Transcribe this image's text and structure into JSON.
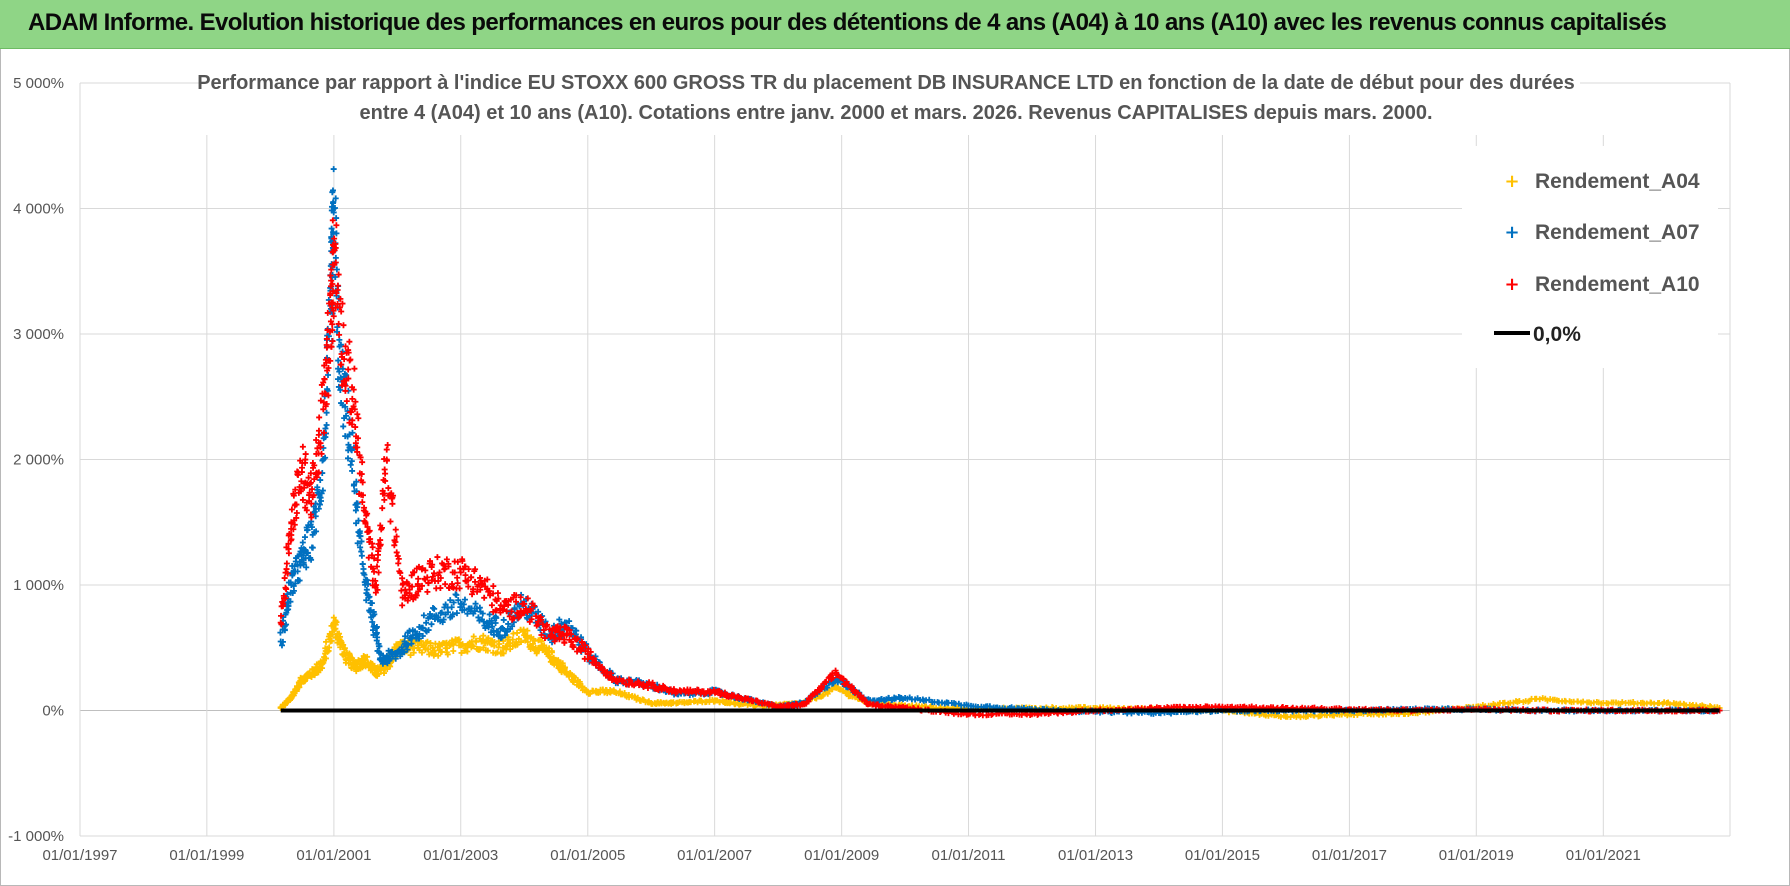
{
  "banner": {
    "title": "ADAM Informe. Evolution historique des performances en euros pour des détentions de 4 ans (A04) à 10 ans (A10) avec les revenus connus capitalisés"
  },
  "colors": {
    "banner_bg": "#8fd586",
    "A04": "#ffc000",
    "A07": "#0070c0",
    "A10": "#ff0000",
    "zero": "#000000",
    "grid": "#d9d9d9"
  },
  "chart_data": {
    "type": "scatter",
    "title_lines": [
      "Performance par rapport à l'indice EU STOXX 600 GROSS TR  du placement DB INSURANCE LTD en fonction de la date de début pour des durées",
      "entre 4 (A04) et 10 ans (A10).  Cotations entre janv. 2000 et mars. 2026.  Revenus CAPITALISES depuis mars. 2000."
    ],
    "xlabel": "",
    "ylabel": "",
    "x_range": [
      "01/01/1997",
      "31/12/2022"
    ],
    "ylim": [
      -1000,
      5000
    ],
    "y_unit": "%",
    "y_ticks": [
      -1000,
      0,
      1000,
      2000,
      3000,
      4000,
      5000
    ],
    "y_tick_labels": [
      "-1 000%",
      "0%",
      "1 000%",
      "2 000%",
      "3 000%",
      "4 000%",
      "5 000%"
    ],
    "x_tick_labels": [
      "01/01/1997",
      "01/01/1999",
      "01/01/2001",
      "01/01/2003",
      "01/01/2005",
      "01/01/2007",
      "01/01/2009",
      "01/01/2011",
      "01/01/2013",
      "01/01/2015",
      "01/01/2017",
      "01/01/2019",
      "01/01/2021"
    ],
    "grid": true,
    "legend_position": "top-right",
    "legend": [
      "Rendement_A04",
      "Rendement_A07",
      "Rendement_A10",
      "0,0%"
    ],
    "series": [
      {
        "name": "Rendement_A04",
        "marker": "plus",
        "points": [
          [
            "2000-03-01",
            20
          ],
          [
            "2000-05-01",
            100
          ],
          [
            "2000-07-01",
            250
          ],
          [
            "2000-09-01",
            300
          ],
          [
            "2000-11-01",
            380
          ],
          [
            "2001-01-01",
            700
          ],
          [
            "2001-03-01",
            450
          ],
          [
            "2001-05-01",
            350
          ],
          [
            "2001-07-01",
            400
          ],
          [
            "2001-09-01",
            300
          ],
          [
            "2001-11-01",
            350
          ],
          [
            "2002-01-01",
            500
          ],
          [
            "2002-05-01",
            500
          ],
          [
            "2002-09-01",
            480
          ],
          [
            "2003-01-01",
            520
          ],
          [
            "2003-05-01",
            550
          ],
          [
            "2003-09-01",
            500
          ],
          [
            "2004-01-01",
            600
          ],
          [
            "2004-04-01",
            500
          ],
          [
            "2004-07-01",
            400
          ],
          [
            "2004-09-01",
            300
          ],
          [
            "2005-01-01",
            150
          ],
          [
            "2005-06-01",
            150
          ],
          [
            "2006-01-01",
            60
          ],
          [
            "2006-06-01",
            60
          ],
          [
            "2007-01-01",
            80
          ],
          [
            "2007-06-01",
            50
          ],
          [
            "2008-01-01",
            40
          ],
          [
            "2008-06-01",
            60
          ],
          [
            "2008-12-01",
            180
          ],
          [
            "2009-06-01",
            60
          ],
          [
            "2010-01-01",
            40
          ],
          [
            "2011-01-01",
            10
          ],
          [
            "2012-01-01",
            20
          ],
          [
            "2013-01-01",
            20
          ],
          [
            "2014-01-01",
            10
          ],
          [
            "2015-01-01",
            0
          ],
          [
            "2016-01-01",
            -50
          ],
          [
            "2017-01-01",
            -30
          ],
          [
            "2018-01-01",
            -20
          ],
          [
            "2019-01-01",
            30
          ],
          [
            "2020-01-01",
            90
          ],
          [
            "2021-01-01",
            60
          ],
          [
            "2022-01-01",
            60
          ],
          [
            "2022-11-01",
            20
          ]
        ]
      },
      {
        "name": "Rendement_A07",
        "marker": "plus",
        "points": [
          [
            "2000-03-01",
            550
          ],
          [
            "2000-05-01",
            1000
          ],
          [
            "2000-07-01",
            1200
          ],
          [
            "2000-09-01",
            1400
          ],
          [
            "2000-11-01",
            2000
          ],
          [
            "2000-12-15",
            3200
          ],
          [
            "2001-01-01",
            4000
          ],
          [
            "2001-02-01",
            2700
          ],
          [
            "2001-04-01",
            2200
          ],
          [
            "2001-06-01",
            1300
          ],
          [
            "2001-08-01",
            800
          ],
          [
            "2001-10-01",
            400
          ],
          [
            "2002-01-01",
            450
          ],
          [
            "2002-04-01",
            600
          ],
          [
            "2002-08-01",
            750
          ],
          [
            "2003-01-01",
            850
          ],
          [
            "2003-06-01",
            700
          ],
          [
            "2003-09-01",
            650
          ],
          [
            "2004-01-01",
            850
          ],
          [
            "2004-06-01",
            600
          ],
          [
            "2004-09-01",
            700
          ],
          [
            "2005-01-01",
            450
          ],
          [
            "2005-06-01",
            250
          ],
          [
            "2006-01-01",
            200
          ],
          [
            "2006-06-01",
            130
          ],
          [
            "2007-01-01",
            150
          ],
          [
            "2007-06-01",
            100
          ],
          [
            "2008-01-01",
            30
          ],
          [
            "2008-06-01",
            60
          ],
          [
            "2008-12-01",
            260
          ],
          [
            "2009-06-01",
            80
          ],
          [
            "2010-01-01",
            100
          ],
          [
            "2011-01-01",
            40
          ],
          [
            "2012-01-01",
            10
          ],
          [
            "2013-01-01",
            -10
          ],
          [
            "2014-01-01",
            -20
          ],
          [
            "2015-01-01",
            0
          ],
          [
            "2016-01-01",
            0
          ],
          [
            "2017-01-01",
            0
          ],
          [
            "2018-01-01",
            10
          ],
          [
            "2019-01-01",
            10
          ],
          [
            "2020-01-01",
            0
          ],
          [
            "2021-01-01",
            0
          ],
          [
            "2022-01-01",
            0
          ],
          [
            "2022-11-01",
            0
          ]
        ]
      },
      {
        "name": "Rendement_A10",
        "marker": "plus",
        "points": [
          [
            "2000-03-01",
            700
          ],
          [
            "2000-05-01",
            1500
          ],
          [
            "2000-07-01",
            1900
          ],
          [
            "2000-09-01",
            1700
          ],
          [
            "2000-11-01",
            2400
          ],
          [
            "2000-12-15",
            3100
          ],
          [
            "2001-01-01",
            3700
          ],
          [
            "2001-03-01",
            2800
          ],
          [
            "2001-05-01",
            2400
          ],
          [
            "2001-07-01",
            1500
          ],
          [
            "2001-09-01",
            1000
          ],
          [
            "2001-11-01",
            2000
          ],
          [
            "2002-02-01",
            900
          ],
          [
            "2002-05-01",
            1050
          ],
          [
            "2002-09-01",
            1100
          ],
          [
            "2003-01-01",
            1100
          ],
          [
            "2003-05-01",
            1000
          ],
          [
            "2003-09-01",
            800
          ],
          [
            "2004-01-01",
            850
          ],
          [
            "2004-06-01",
            600
          ],
          [
            "2004-09-01",
            600
          ],
          [
            "2005-01-01",
            450
          ],
          [
            "2005-06-01",
            250
          ],
          [
            "2006-01-01",
            200
          ],
          [
            "2006-06-01",
            150
          ],
          [
            "2007-01-01",
            150
          ],
          [
            "2007-06-01",
            100
          ],
          [
            "2008-01-01",
            30
          ],
          [
            "2008-06-01",
            50
          ],
          [
            "2008-12-01",
            300
          ],
          [
            "2009-06-01",
            50
          ],
          [
            "2010-01-01",
            20
          ],
          [
            "2011-01-01",
            -30
          ],
          [
            "2012-01-01",
            -30
          ],
          [
            "2013-01-01",
            0
          ],
          [
            "2014-01-01",
            20
          ],
          [
            "2015-01-01",
            30
          ],
          [
            "2016-01-01",
            20
          ],
          [
            "2017-01-01",
            10
          ],
          [
            "2018-01-01",
            0
          ],
          [
            "2019-01-01",
            10
          ],
          [
            "2020-01-01",
            0
          ],
          [
            "2021-01-01",
            0
          ],
          [
            "2022-01-01",
            0
          ],
          [
            "2022-11-01",
            0
          ]
        ]
      },
      {
        "name": "0,0%",
        "marker": "line",
        "points": [
          [
            "2000-03-01",
            0
          ],
          [
            "2022-11-01",
            0
          ]
        ]
      }
    ]
  }
}
